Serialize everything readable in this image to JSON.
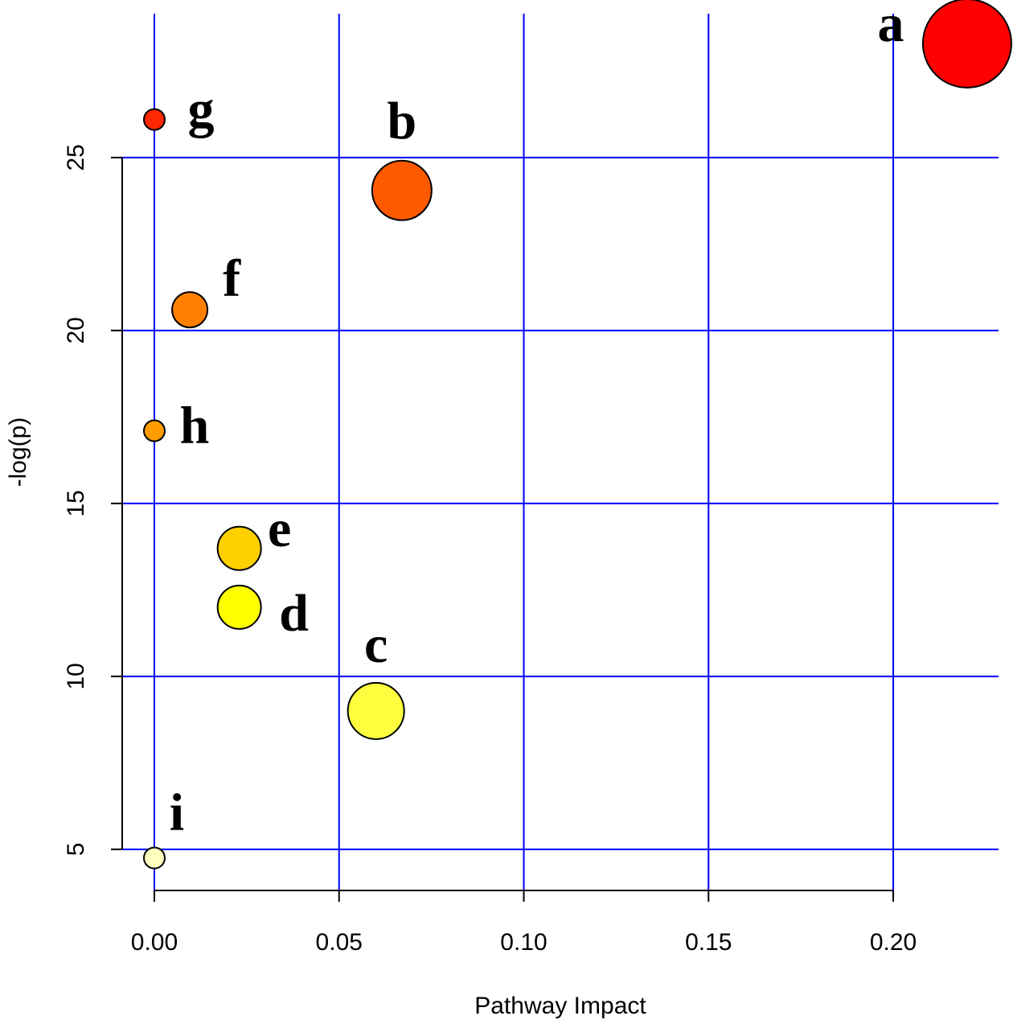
{
  "chart_data": {
    "type": "scatter",
    "x_label": "Pathway Impact",
    "y_label": "-log(p)",
    "x": [
      0.22,
      0.067,
      0.06,
      0.023,
      0.023,
      0.0096,
      0,
      0,
      0
    ],
    "values": [
      28.3,
      24.05,
      9.0,
      12.0,
      13.7,
      20.6,
      26.1,
      17.1,
      4.75
    ],
    "sizes": [
      55,
      37,
      35,
      27,
      27,
      22,
      13,
      13,
      13
    ],
    "labels": [
      "a",
      "b",
      "c",
      "d",
      "e",
      "f",
      "g",
      "h",
      "i"
    ],
    "colors": [
      "#ff0000",
      "#ff5a00",
      "#ffff40",
      "#ffff00",
      "#ffd000",
      "#ff8000",
      "#ff2800",
      "#ff9c00",
      "#ffffc0"
    ],
    "xlim": [
      -0.0087,
      0.2285
    ],
    "ylim": [
      3.81,
      29.16
    ],
    "xticks": [
      {
        "value": 0,
        "label": "0.00"
      },
      {
        "value": 0.05,
        "label": "0.05"
      },
      {
        "value": 0.1,
        "label": "0.10"
      },
      {
        "value": 0.15,
        "label": "0.15"
      },
      {
        "value": 0.2,
        "label": "0.20"
      }
    ],
    "yticks": [
      5,
      10,
      15,
      20,
      25
    ],
    "grid": true,
    "grid_color": "#0000ff"
  }
}
